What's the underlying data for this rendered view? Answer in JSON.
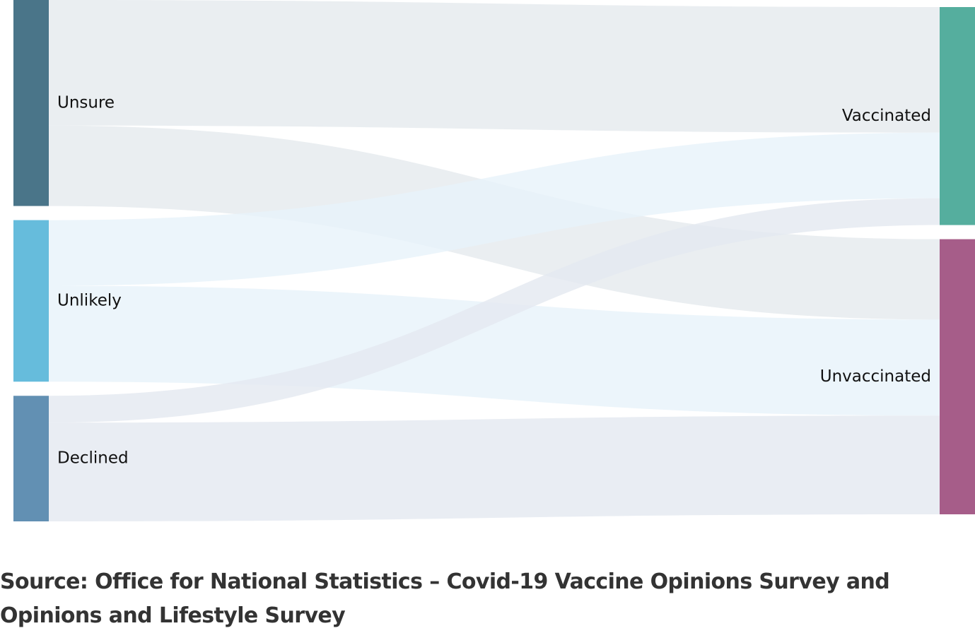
{
  "chart_data": {
    "type": "sankey",
    "title": "",
    "nodes": [
      {
        "id": "unsure",
        "label": "Unsure",
        "column": "left",
        "color": "#4a7589"
      },
      {
        "id": "unlikely",
        "label": "Unlikely",
        "column": "left",
        "color": "#66bcdc"
      },
      {
        "id": "declined",
        "label": "Declined",
        "column": "left",
        "color": "#6290b3"
      },
      {
        "id": "vaccinated",
        "label": "Vaccinated",
        "column": "right",
        "color": "#55ae9e"
      },
      {
        "id": "unvaccinated",
        "label": "Unvaccinated",
        "column": "right",
        "color": "#a65d89"
      }
    ],
    "links": [
      {
        "source": "unsure",
        "target": "vaccinated",
        "value": 178,
        "color": "#e5eaee"
      },
      {
        "source": "unsure",
        "target": "unvaccinated",
        "value": 114,
        "color": "#e5eaee"
      },
      {
        "source": "unlikely",
        "target": "vaccinated",
        "value": 93,
        "color": "#e8f3fa"
      },
      {
        "source": "unlikely",
        "target": "unvaccinated",
        "value": 136,
        "color": "#e8f3fa"
      },
      {
        "source": "declined",
        "target": "vaccinated",
        "value": 38,
        "color": "#e4e9f0"
      },
      {
        "source": "declined",
        "target": "unvaccinated",
        "value": 140,
        "color": "#e4e9f0"
      }
    ],
    "node_order": {
      "left": [
        "unsure",
        "unlikely",
        "declined"
      ],
      "right": [
        "vaccinated",
        "unvaccinated"
      ]
    },
    "link_order_at_target": {
      "vaccinated": [
        "unsure",
        "unlikely",
        "declined"
      ],
      "unvaccinated": [
        "unsure",
        "unlikely",
        "declined"
      ]
    }
  },
  "source_note": "Source: Office for National Statistics – Covid-19 Vaccine Opinions Survey and Opinions and Lifestyle Survey"
}
